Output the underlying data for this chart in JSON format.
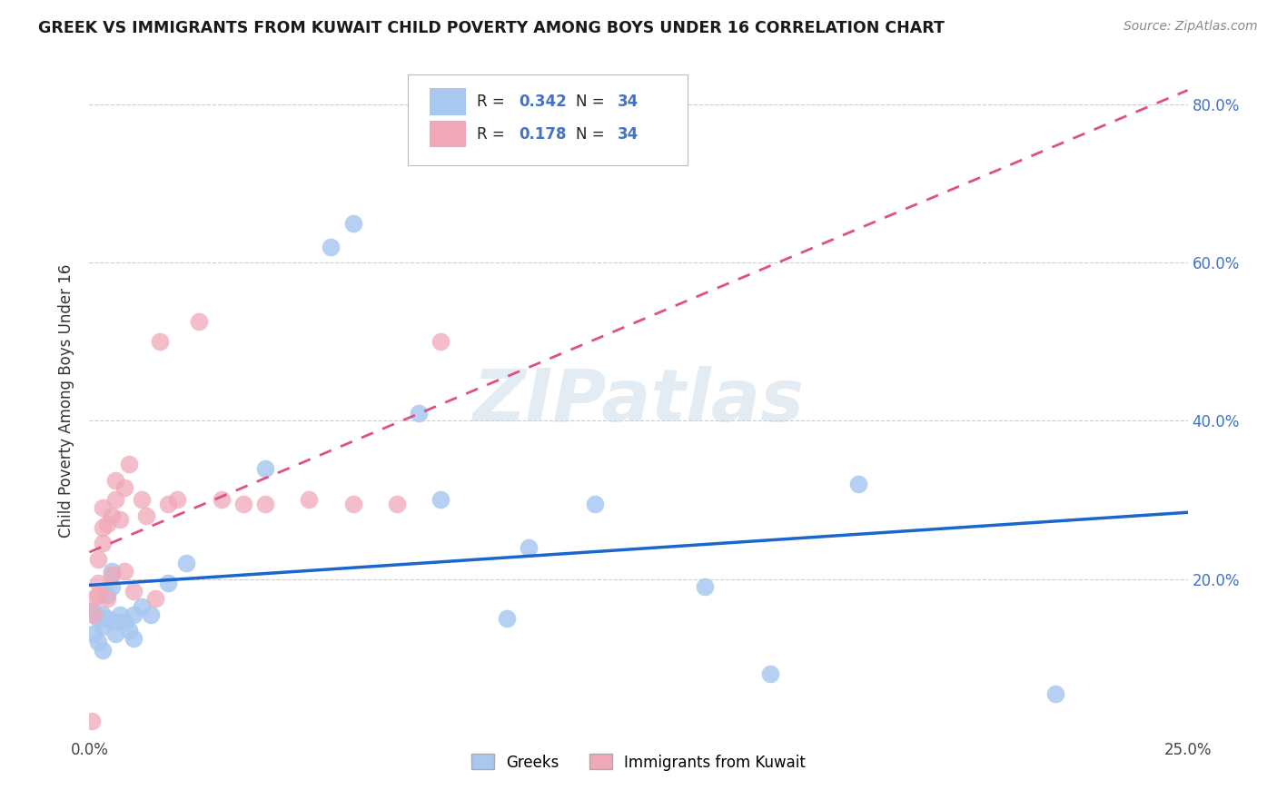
{
  "title": "GREEK VS IMMIGRANTS FROM KUWAIT CHILD POVERTY AMONG BOYS UNDER 16 CORRELATION CHART",
  "source": "Source: ZipAtlas.com",
  "ylabel": "Child Poverty Among Boys Under 16",
  "xlim": [
    0.0,
    0.25
  ],
  "ylim": [
    0.0,
    0.85
  ],
  "xticks": [
    0.0,
    0.05,
    0.1,
    0.15,
    0.2,
    0.25
  ],
  "yticks": [
    0.0,
    0.2,
    0.4,
    0.6,
    0.8
  ],
  "right_ytick_labels": [
    "",
    "20.0%",
    "40.0%",
    "60.0%",
    "80.0%"
  ],
  "xtick_labels": [
    "0.0%",
    "",
    "",
    "",
    "",
    "25.0%"
  ],
  "greek_R": 0.342,
  "greek_N": 34,
  "kuwait_R": 0.178,
  "kuwait_N": 34,
  "greek_color": "#a8c8f0",
  "greek_line_color": "#1a66cc",
  "kuwait_color": "#f0a8b8",
  "kuwait_line_color": "#e05080",
  "watermark": "ZIPatlas",
  "greeks_x": [
    0.001,
    0.001,
    0.002,
    0.002,
    0.003,
    0.003,
    0.003,
    0.004,
    0.004,
    0.005,
    0.005,
    0.006,
    0.006,
    0.007,
    0.008,
    0.009,
    0.01,
    0.01,
    0.012,
    0.014,
    0.018,
    0.022,
    0.04,
    0.055,
    0.06,
    0.075,
    0.08,
    0.095,
    0.1,
    0.115,
    0.14,
    0.155,
    0.175,
    0.22
  ],
  "greeks_y": [
    0.16,
    0.13,
    0.15,
    0.12,
    0.155,
    0.14,
    0.11,
    0.15,
    0.18,
    0.19,
    0.21,
    0.145,
    0.13,
    0.155,
    0.145,
    0.135,
    0.125,
    0.155,
    0.165,
    0.155,
    0.195,
    0.22,
    0.34,
    0.62,
    0.65,
    0.41,
    0.3,
    0.15,
    0.24,
    0.295,
    0.19,
    0.08,
    0.32,
    0.055
  ],
  "kuwait_x": [
    0.0005,
    0.001,
    0.001,
    0.002,
    0.002,
    0.002,
    0.003,
    0.003,
    0.003,
    0.004,
    0.004,
    0.005,
    0.005,
    0.006,
    0.006,
    0.007,
    0.008,
    0.008,
    0.009,
    0.01,
    0.012,
    0.013,
    0.015,
    0.016,
    0.018,
    0.02,
    0.025,
    0.03,
    0.035,
    0.04,
    0.05,
    0.06,
    0.07,
    0.08
  ],
  "kuwait_y": [
    0.02,
    0.155,
    0.175,
    0.18,
    0.195,
    0.225,
    0.245,
    0.265,
    0.29,
    0.175,
    0.27,
    0.28,
    0.205,
    0.3,
    0.325,
    0.275,
    0.21,
    0.315,
    0.345,
    0.185,
    0.3,
    0.28,
    0.175,
    0.5,
    0.295,
    0.3,
    0.525,
    0.3,
    0.295,
    0.295,
    0.3,
    0.295,
    0.295,
    0.5
  ]
}
